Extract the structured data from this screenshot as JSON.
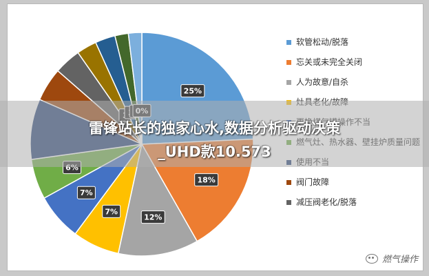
{
  "chart_data": {
    "type": "pie",
    "categories": [
      "软管松动/脱落",
      "忘关或未完全关闭",
      "人为故意/自杀",
      "灶具老化/故障",
      "更换煤气罐操作不当",
      "燃气灶、热水器、壁挂炉质量问题",
      "使用不当",
      "阀门故障",
      "减压阀老化/脱落",
      "",
      "",
      "",
      "",
      ""
    ],
    "values": [
      25,
      18,
      12,
      7,
      7,
      6,
      9,
      5,
      4,
      3,
      3,
      2,
      2,
      0
    ],
    "data_labels": [
      "25%",
      "18%",
      "12%",
      "7%",
      "7%",
      "6%",
      "",
      "",
      "",
      "3",
      "3",
      "2",
      "2",
      "0%"
    ],
    "colors": [
      "#5b9bd5",
      "#ed7d31",
      "#a5a5a5",
      "#ffc000",
      "#4472c4",
      "#70ad47",
      "#264478",
      "#9e480e",
      "#636363",
      "#997300",
      "#255e91",
      "#43682b",
      "#7cafdd",
      "#f1975a"
    ],
    "legend_position": "right"
  },
  "overlay": {
    "line1": "雷锋站长的独家心水,数据分析驱动决策",
    "line2": "_UHD款10.573"
  },
  "watermark": {
    "text": "燃气操作",
    "icon": "wechat-icon"
  }
}
